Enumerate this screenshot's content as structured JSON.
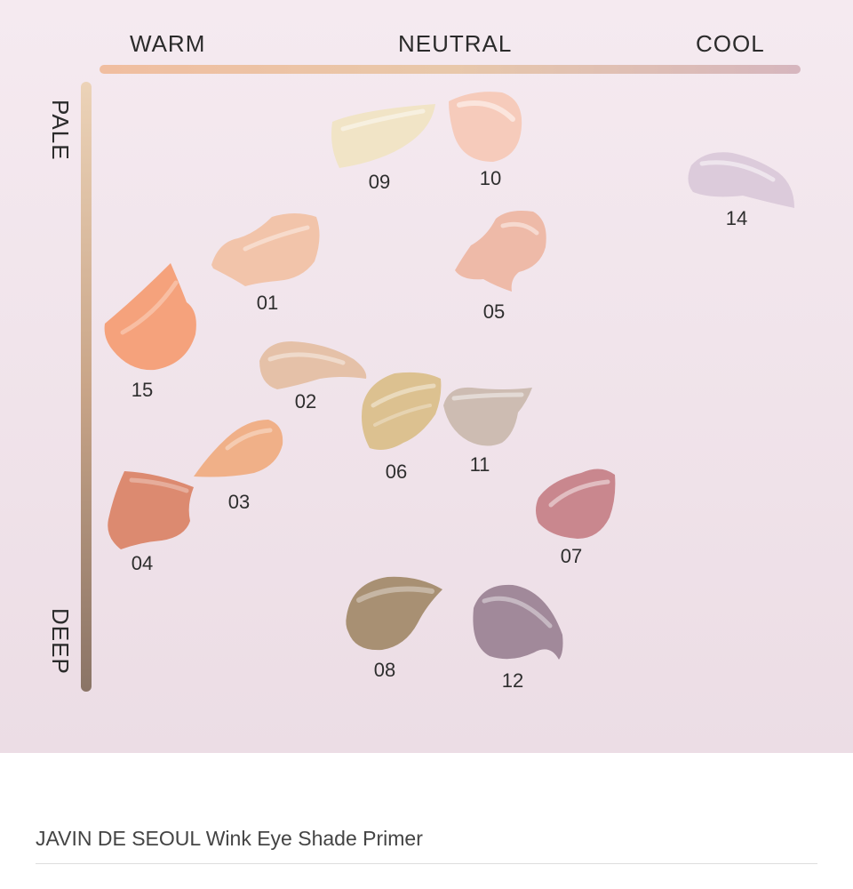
{
  "axes": {
    "horizontal": {
      "warm": "WARM",
      "neutral": "NEUTRAL",
      "cool": "COOL"
    },
    "vertical": {
      "pale": "PALE",
      "deep": "DEEP"
    }
  },
  "shades": [
    {
      "id": "09",
      "color": "#f1e4c6"
    },
    {
      "id": "10",
      "color": "#f6cbbb"
    },
    {
      "id": "14",
      "color": "#dccbdb"
    },
    {
      "id": "01",
      "color": "#f2c4aa"
    },
    {
      "id": "05",
      "color": "#eebaa8"
    },
    {
      "id": "15",
      "color": "#f5a27c"
    },
    {
      "id": "02",
      "color": "#e5c1a8"
    },
    {
      "id": "06",
      "color": "#dcc190"
    },
    {
      "id": "11",
      "color": "#cdbcb2"
    },
    {
      "id": "03",
      "color": "#f0b088"
    },
    {
      "id": "04",
      "color": "#dc8a70"
    },
    {
      "id": "07",
      "color": "#c9878e"
    },
    {
      "id": "08",
      "color": "#a89073"
    },
    {
      "id": "12",
      "color": "#a1899a"
    }
  ],
  "footer": {
    "title": "JAVIN DE SEOUL Wink Eye Shade Primer"
  }
}
